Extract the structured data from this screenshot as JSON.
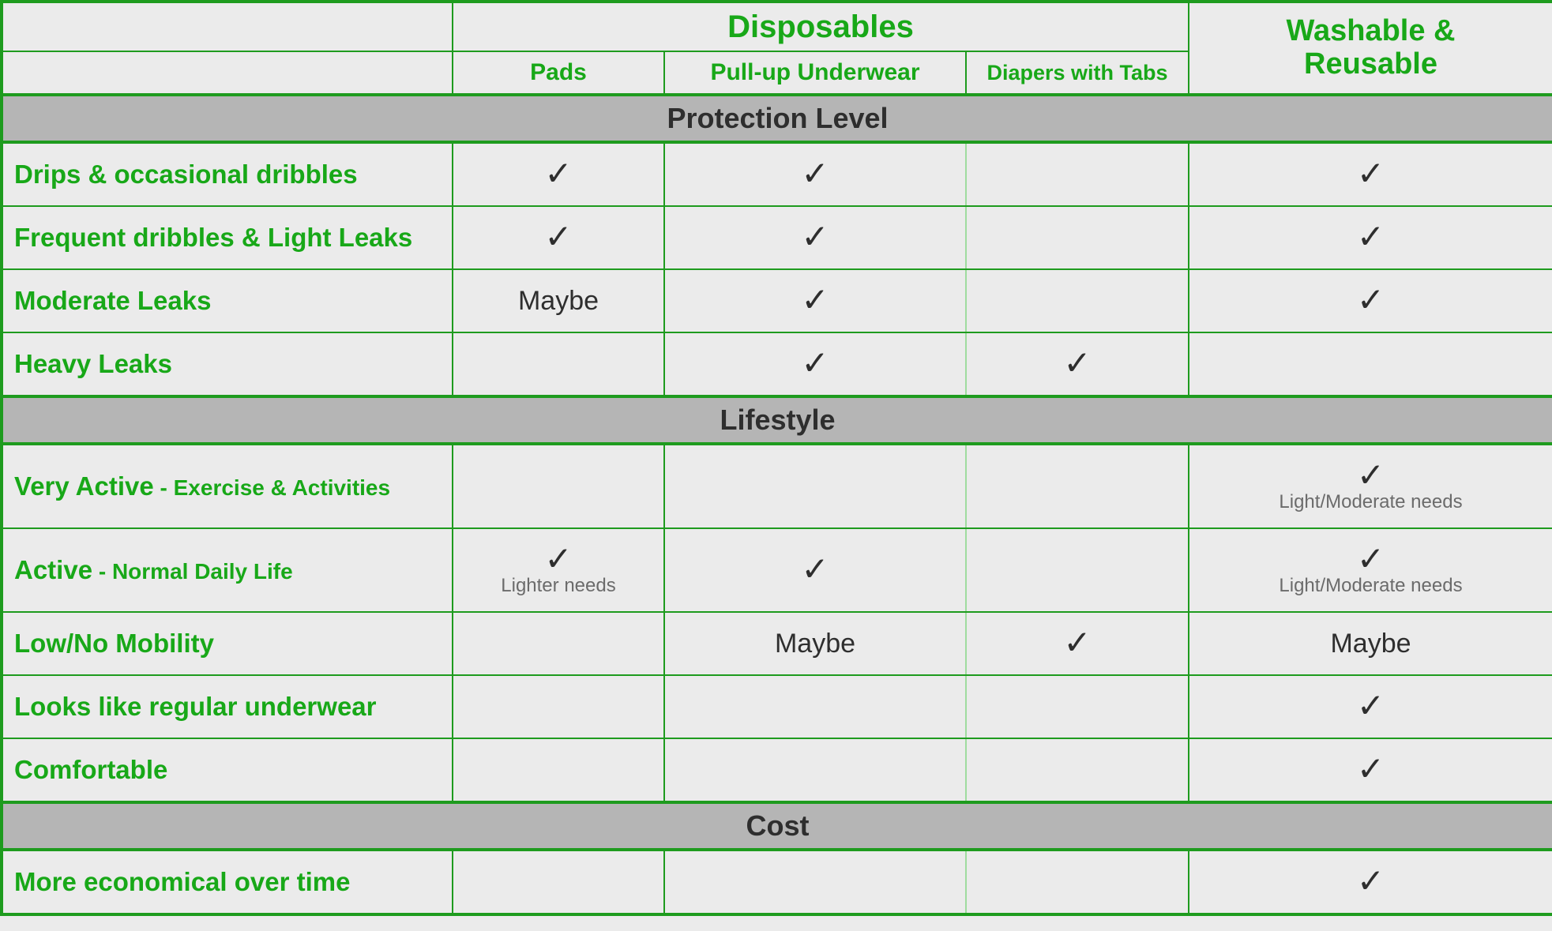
{
  "colors": {
    "green": "#18a818",
    "border_green": "#1e9b1e",
    "light_border": "#9fdc9f",
    "section_bg": "#b5b5b5",
    "page_bg": "#ebebeb",
    "text_dark": "#2e2e2e",
    "note_gray": "#6b6b6b"
  },
  "glyphs": {
    "check": "✓"
  },
  "header": {
    "disposables": "Disposables",
    "pads": "Pads",
    "pullup": "Pull-up Underwear",
    "diapers": "Diapers with Tabs",
    "washable_l1": "Washable &",
    "washable_l2": "Reusable"
  },
  "sections": {
    "protection": "Protection Level",
    "lifestyle": "Lifestyle",
    "cost": "Cost"
  },
  "rows": {
    "drips": {
      "label": "Drips & occasional dribbles",
      "pads": "check",
      "pullup": "check",
      "diapers": "",
      "washable": "check"
    },
    "frequent": {
      "label": "Frequent dribbles & Light Leaks",
      "pads": "check",
      "pullup": "check",
      "diapers": "",
      "washable": "check"
    },
    "moderate": {
      "label": "Moderate Leaks",
      "pads": "Maybe",
      "pullup": "check",
      "diapers": "",
      "washable": "check"
    },
    "heavy": {
      "label": "Heavy Leaks",
      "pads": "",
      "pullup": "check",
      "diapers": "check",
      "washable": ""
    },
    "very_active": {
      "label_main": "Very Active",
      "label_sep": " - ",
      "label_sub": "Exercise & Activities",
      "pads": "",
      "pullup": "",
      "diapers": "",
      "washable": "check",
      "washable_note": "Light/Moderate needs"
    },
    "active": {
      "label_main": "Active",
      "label_sep": " - ",
      "label_sub": "Normal Daily Life",
      "pads": "check",
      "pads_note": "Lighter needs",
      "pullup": "check",
      "diapers": "",
      "washable": "check",
      "washable_note": "Light/Moderate needs"
    },
    "low_mobility": {
      "label": "Low/No Mobility",
      "pads": "",
      "pullup": "Maybe",
      "diapers": "check",
      "washable": "Maybe"
    },
    "looks": {
      "label": "Looks like regular underwear",
      "pads": "",
      "pullup": "",
      "diapers": "",
      "washable": "check"
    },
    "comfortable": {
      "label": "Comfortable",
      "pads": "",
      "pullup": "",
      "diapers": "",
      "washable": "check"
    },
    "economical": {
      "label": "More economical over time",
      "pads": "",
      "pullup": "",
      "diapers": "",
      "washable": "check"
    }
  }
}
